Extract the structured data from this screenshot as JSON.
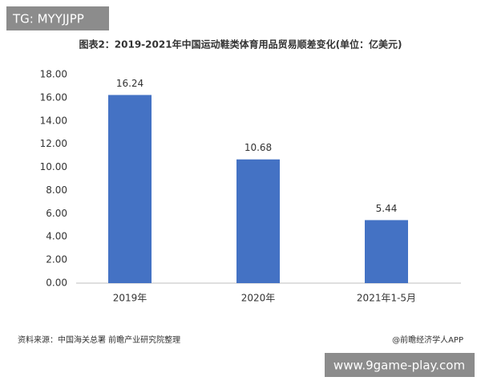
{
  "chart_data": {
    "type": "bar",
    "title": "图表2：2019-2021年中国运动鞋类体育用品贸易顺差变化(单位：亿美元)",
    "categories": [
      "2019年",
      "2020年",
      "2021年1-5月"
    ],
    "values": [
      16.24,
      10.68,
      5.44
    ],
    "color": "#4472c4",
    "ylim": [
      0,
      18
    ],
    "yticks": [
      {
        "value": 0,
        "label": "0.00"
      },
      {
        "value": 2,
        "label": "2.00"
      },
      {
        "value": 4,
        "label": "4.00"
      },
      {
        "value": 6,
        "label": "6.00"
      },
      {
        "value": 8,
        "label": "8.00"
      },
      {
        "value": 10,
        "label": "10.00"
      },
      {
        "value": 12,
        "label": "12.00"
      },
      {
        "value": 14,
        "label": "14.00"
      },
      {
        "value": 16,
        "label": "16.00"
      },
      {
        "value": 18,
        "label": "18.00"
      }
    ],
    "grid": false,
    "source": "资料来源：中国海关总署 前瞻产业研究院整理",
    "credit": "@前瞻经济学人APP"
  },
  "watermarks": [
    "TG: MYYJJPP",
    "www.9game-play.com"
  ]
}
